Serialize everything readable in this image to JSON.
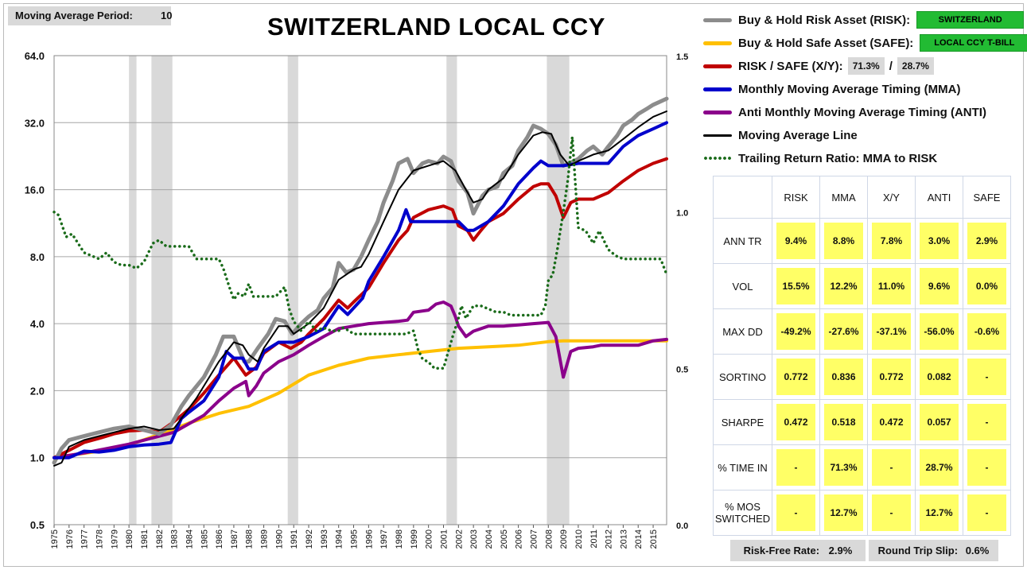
{
  "header": {
    "ma_period_label": "Moving Average Period:",
    "ma_period_value": "10",
    "title": "SWITZERLAND LOCAL CCY"
  },
  "legend": {
    "risk_label": "Buy & Hold Risk Asset (RISK):",
    "risk_value": "SWITZERLAND",
    "safe_label": "Buy & Hold Safe Asset (SAFE):",
    "safe_value": "LOCAL CCY T-BILL",
    "xy_label": "RISK / SAFE (X/Y):",
    "xy_risk": "71.3%",
    "xy_sep": "/",
    "xy_safe": "28.7%",
    "mma_label": "Monthly Moving Average Timing (MMA)",
    "anti_label": "Anti Monthly Moving Average Timing (ANTI)",
    "ma_line_label": "Moving Average Line",
    "ratio_label": "Trailing Return Ratio: MMA to RISK"
  },
  "colors": {
    "risk": "#8c8c8c",
    "safe": "#ffc000",
    "xy": "#c00000",
    "mma": "#0000cc",
    "anti": "#8b008b",
    "ma_line": "#000000",
    "ratio": "#1a6b1a",
    "recession": "#d9d9d9",
    "highlight": "#ffff66",
    "tag_green": "#22bb33"
  },
  "stats": {
    "columns": [
      "RISK",
      "MMA",
      "X/Y",
      "ANTI",
      "SAFE"
    ],
    "rows": [
      {
        "label": "ANN TR",
        "values": [
          "9.4%",
          "8.8%",
          "7.8%",
          "3.0%",
          "2.9%"
        ]
      },
      {
        "label": "VOL",
        "values": [
          "15.5%",
          "12.2%",
          "11.0%",
          "9.6%",
          "0.0%"
        ]
      },
      {
        "label": "MAX DD",
        "values": [
          "-49.2%",
          "-27.6%",
          "-37.1%",
          "-56.0%",
          "-0.6%"
        ]
      },
      {
        "label": "SORTINO",
        "values": [
          "0.772",
          "0.836",
          "0.772",
          "0.082",
          "-"
        ]
      },
      {
        "label": "SHARPE",
        "values": [
          "0.472",
          "0.518",
          "0.472",
          "0.057",
          "-"
        ]
      },
      {
        "label": "% TIME IN",
        "values": [
          "-",
          "71.3%",
          "-",
          "28.7%",
          "-"
        ]
      },
      {
        "label": "% MOS SWITCHED",
        "values": [
          "-",
          "12.7%",
          "-",
          "12.7%",
          "-"
        ]
      }
    ]
  },
  "footer": {
    "risk_free_label": "Risk-Free Rate:",
    "risk_free_value": "2.9%",
    "slip_label": "Round Trip Slip:",
    "slip_value": "0.6%"
  },
  "chart_data": {
    "type": "line",
    "title": "SWITZERLAND LOCAL CCY",
    "y_scale": "log2",
    "ylim": [
      0.5,
      64
    ],
    "y_ticks": [
      "0.5",
      "1.0",
      "2.0",
      "4.0",
      "8.0",
      "16.0",
      "32.0",
      "64.0"
    ],
    "y2lim": [
      0.0,
      1.5
    ],
    "y2_ticks": [
      "0.0",
      "0.5",
      "1.0",
      "1.5"
    ],
    "xlim": [
      1975,
      2015.9
    ],
    "x_ticks": [
      "1975",
      "1976",
      "1977",
      "1978",
      "1979",
      "1980",
      "1981",
      "1982",
      "1983",
      "1984",
      "1985",
      "1986",
      "1987",
      "1988",
      "1989",
      "1990",
      "1991",
      "1992",
      "1993",
      "1994",
      "1995",
      "1996",
      "1997",
      "1998",
      "1999",
      "2000",
      "2001",
      "2002",
      "2003",
      "2004",
      "2005",
      "2006",
      "2007",
      "2008",
      "2009",
      "2010",
      "2011",
      "2012",
      "2013",
      "2014",
      "2015"
    ],
    "grid": true,
    "recessions": [
      [
        1980.0,
        1980.5
      ],
      [
        1981.5,
        1982.9
      ],
      [
        1990.6,
        1991.3
      ],
      [
        2001.2,
        2001.9
      ],
      [
        2007.9,
        2009.4
      ]
    ],
    "series": [
      {
        "name": "Buy & Hold Risk Asset (RISK)",
        "key": "risk",
        "axis": "left",
        "width": 5,
        "x": [
          1975.0,
          1975.5,
          1976,
          1977,
          1978,
          1979,
          1980,
          1981,
          1982,
          1982.8,
          1983.5,
          1984,
          1985,
          1985.8,
          1986.3,
          1987.0,
          1987.7,
          1988.0,
          1988.6,
          1989.3,
          1989.8,
          1990.4,
          1990.9,
          1991.5,
          1992,
          1992.6,
          1993,
          1993.6,
          1994.0,
          1994.5,
          1995,
          1995.5,
          1996,
          1996.6,
          1997,
          1997.6,
          1998,
          1998.6,
          1999,
          1999.6,
          2000,
          2000.6,
          2001,
          2001.5,
          2002,
          2002.6,
          2003.0,
          2003.6,
          2004,
          2004.6,
          2005,
          2005.6,
          2006,
          2006.6,
          2007.0,
          2007.5,
          2008.0,
          2008.5,
          2009.0,
          2009.4,
          2010,
          2010.6,
          2011,
          2011.6,
          2012,
          2012.6,
          2013,
          2013.6,
          2014,
          2014.6,
          2015,
          2015.9
        ],
        "y": [
          0.95,
          1.1,
          1.2,
          1.25,
          1.3,
          1.35,
          1.38,
          1.33,
          1.28,
          1.4,
          1.7,
          1.9,
          2.3,
          2.9,
          3.5,
          3.5,
          2.7,
          2.7,
          3.1,
          3.6,
          4.2,
          4.1,
          3.6,
          4.0,
          4.3,
          4.6,
          5.2,
          5.8,
          7.5,
          6.8,
          7.0,
          8.0,
          9.5,
          11.5,
          14.0,
          17.5,
          21.0,
          22.0,
          19.0,
          21.0,
          21.5,
          21.0,
          22.5,
          21.5,
          17.5,
          15.5,
          12.5,
          15.0,
          16.0,
          16.5,
          19.0,
          20.5,
          24.0,
          27.5,
          31.0,
          30.0,
          28.5,
          25.5,
          20.5,
          21.0,
          22.0,
          24.0,
          25.0,
          23.0,
          25.0,
          28.0,
          31.0,
          33.0,
          35.0,
          37.0,
          38.5,
          41.0
        ]
      },
      {
        "name": "Buy & Hold Safe Asset (SAFE)",
        "key": "safe",
        "axis": "left",
        "width": 4,
        "x": [
          1975,
          1978,
          1980,
          1982,
          1984,
          1986,
          1988,
          1990,
          1992,
          1994,
          1996,
          1998,
          2000,
          2002,
          2004,
          2006,
          2008,
          2009,
          2012,
          2015.9
        ],
        "y": [
          1.0,
          1.07,
          1.14,
          1.27,
          1.43,
          1.58,
          1.7,
          1.95,
          2.35,
          2.6,
          2.8,
          2.9,
          3.0,
          3.1,
          3.15,
          3.2,
          3.32,
          3.35,
          3.35,
          3.35
        ]
      },
      {
        "name": "RISK / SAFE (X/Y)",
        "key": "xy",
        "axis": "left",
        "width": 4,
        "x": [
          1975,
          1976,
          1977,
          1978,
          1979,
          1980,
          1981,
          1982,
          1983,
          1984,
          1985,
          1986,
          1987,
          1987.8,
          1988.5,
          1989,
          1990,
          1990.8,
          1991.5,
          1992,
          1993,
          1994,
          1994.6,
          1995,
          1996,
          1997,
          1998,
          1998.6,
          1999,
          2000,
          2001,
          2001.6,
          2002,
          2002.6,
          2003.0,
          2003.5,
          2004,
          2005,
          2006,
          2007,
          2007.5,
          2008.0,
          2008.5,
          2009.0,
          2009.5,
          2010,
          2011,
          2012,
          2013,
          2014,
          2015,
          2015.9
        ],
        "y": [
          1.0,
          1.08,
          1.17,
          1.22,
          1.28,
          1.32,
          1.33,
          1.3,
          1.45,
          1.65,
          1.95,
          2.35,
          2.8,
          2.35,
          2.55,
          2.95,
          3.3,
          3.1,
          3.3,
          3.6,
          4.2,
          5.1,
          4.7,
          5.0,
          5.8,
          7.5,
          9.5,
          10.5,
          12.0,
          13.0,
          13.5,
          13.0,
          11.0,
          10.5,
          9.5,
          10.5,
          11.5,
          12.5,
          14.5,
          16.5,
          17.0,
          17.0,
          15.0,
          12.0,
          14.0,
          14.5,
          14.5,
          15.5,
          17.5,
          19.5,
          21.0,
          22.0
        ]
      },
      {
        "name": "Monthly Moving Average Timing (MMA)",
        "key": "mma",
        "axis": "left",
        "width": 4,
        "x": [
          1975,
          1976,
          1977,
          1978,
          1979,
          1980,
          1981,
          1982,
          1982.8,
          1983.5,
          1984,
          1985,
          1986,
          1986.5,
          1987,
          1987.6,
          1988.0,
          1988.5,
          1989,
          1990,
          1990.6,
          1991,
          1992,
          1993,
          1994,
          1994.6,
          1995,
          1995.6,
          1996,
          1997,
          1998,
          1998.5,
          1998.8,
          1999,
          2000,
          2001,
          2001.5,
          2002,
          2002.6,
          2003,
          2004,
          2005,
          2006,
          2007,
          2007.5,
          2008.0,
          2009,
          2010,
          2011,
          2012,
          2013,
          2014,
          2015,
          2015.9
        ],
        "y": [
          1.0,
          1.0,
          1.07,
          1.06,
          1.08,
          1.12,
          1.14,
          1.15,
          1.17,
          1.5,
          1.6,
          1.8,
          2.3,
          3.0,
          2.8,
          2.8,
          2.5,
          2.5,
          3.0,
          3.3,
          3.3,
          3.3,
          3.5,
          3.8,
          4.8,
          4.4,
          4.7,
          5.2,
          6.2,
          8.0,
          10.5,
          13.0,
          11.5,
          11.5,
          11.5,
          11.5,
          11.5,
          11.5,
          10.5,
          10.5,
          11.5,
          13.5,
          17.0,
          20.0,
          21.5,
          20.5,
          20.5,
          21.0,
          21.0,
          21.0,
          25.0,
          28.0,
          30.0,
          32.0
        ]
      },
      {
        "name": "Anti Monthly Moving Average Timing (ANTI)",
        "key": "anti",
        "axis": "left",
        "width": 4,
        "x": [
          1975,
          1977,
          1980,
          1983,
          1985,
          1986,
          1987,
          1987.8,
          1988.0,
          1988.5,
          1989,
          1990,
          1991,
          1992,
          1993,
          1994,
          1995,
          1996,
          1997,
          1998,
          1998.6,
          1999,
          2000,
          2000.5,
          2001,
          2001.5,
          2001.8,
          2002,
          2002.5,
          2003,
          2004,
          2005,
          2006,
          2007,
          2008,
          2008.5,
          2009.0,
          2009.5,
          2010,
          2011,
          2011.5,
          2012,
          2013,
          2014,
          2015,
          2015.9
        ],
        "y": [
          1.0,
          1.05,
          1.15,
          1.3,
          1.55,
          1.8,
          2.05,
          2.2,
          1.9,
          2.1,
          2.4,
          2.7,
          2.9,
          3.2,
          3.5,
          3.8,
          3.9,
          4.0,
          4.05,
          4.1,
          4.15,
          4.5,
          4.6,
          4.9,
          5.0,
          4.8,
          4.3,
          3.9,
          3.5,
          3.7,
          3.9,
          3.9,
          3.95,
          4.0,
          4.05,
          3.5,
          2.3,
          3.0,
          3.1,
          3.15,
          3.2,
          3.2,
          3.2,
          3.2,
          3.35,
          3.4
        ]
      },
      {
        "name": "Moving Average Line",
        "key": "ma_line",
        "axis": "left",
        "width": 2,
        "x": [
          1975.0,
          1975.5,
          1976,
          1977,
          1978,
          1979,
          1980,
          1981,
          1982,
          1983,
          1983.8,
          1984.5,
          1985,
          1986,
          1987,
          1987.6,
          1988,
          1988.6,
          1989,
          1990,
          1990.6,
          1991,
          1992,
          1993,
          1994,
          1995,
          1995.5,
          1996,
          1997,
          1998,
          1999,
          2000,
          2001,
          2001.8,
          2002.5,
          2003,
          2003.6,
          2004,
          2005,
          2006,
          2007,
          2007.6,
          2008.2,
          2008.8,
          2009.4,
          2010,
          2011,
          2012,
          2013,
          2014,
          2015,
          2015.9
        ],
        "y": [
          0.92,
          0.95,
          1.12,
          1.2,
          1.25,
          1.3,
          1.35,
          1.38,
          1.33,
          1.35,
          1.6,
          1.85,
          2.1,
          2.7,
          3.3,
          3.2,
          2.9,
          2.7,
          3.1,
          3.9,
          3.9,
          3.6,
          4.0,
          4.7,
          6.3,
          7.0,
          7.2,
          8.2,
          11.5,
          16.0,
          19.5,
          20.5,
          21.5,
          19.5,
          16.0,
          14.0,
          14.5,
          16.0,
          18.0,
          23.0,
          28.0,
          29.0,
          28.5,
          23.0,
          20.5,
          21.5,
          23.0,
          24.0,
          27.0,
          30.5,
          34.0,
          36.0
        ]
      },
      {
        "name": "Trailing Return Ratio: MMA to RISK",
        "key": "ratio",
        "axis": "right",
        "dotted": true,
        "x": [
          1975.0,
          1975.3,
          1975.8,
          1976.2,
          1976.6,
          1977,
          1977.5,
          1978,
          1978.5,
          1979,
          1979.5,
          1980,
          1980.5,
          1981,
          1981.3,
          1981.6,
          1982,
          1982.5,
          1983,
          1983.5,
          1984,
          1984.5,
          1985,
          1985.5,
          1986,
          1986.3,
          1986.7,
          1987,
          1987.3,
          1987.7,
          1988,
          1988.3,
          1988.6,
          1989,
          1989.5,
          1989.8,
          1990,
          1990.4,
          1990.7,
          1991,
          1991.5,
          1992,
          1992.5,
          1993,
          1993.5,
          1994,
          1994.3,
          1994.7,
          1995,
          1995.5,
          1996,
          1996.5,
          1997,
          1997.5,
          1998,
          1998.5,
          1999,
          1999.3,
          1999.6,
          2000,
          2000.4,
          2000.8,
          2001,
          2001.3,
          2001.6,
          2002,
          2002.2,
          2002.5,
          2003,
          2003.5,
          2004,
          2004.5,
          2005,
          2005.5,
          2006,
          2006.5,
          2007,
          2007.5,
          2007.8,
          2008.0,
          2008.3,
          2008.6,
          2009.0,
          2009.3,
          2009.6,
          2010,
          2010.5,
          2011,
          2011.4,
          2011.8,
          2012,
          2012.5,
          2013,
          2013.5,
          2014,
          2014.5,
          2015,
          2015.5,
          2015.9
        ],
        "y": [
          1.0,
          0.99,
          0.92,
          0.93,
          0.9,
          0.87,
          0.86,
          0.85,
          0.87,
          0.84,
          0.83,
          0.83,
          0.82,
          0.84,
          0.87,
          0.9,
          0.91,
          0.89,
          0.89,
          0.89,
          0.89,
          0.85,
          0.85,
          0.85,
          0.85,
          0.82,
          0.76,
          0.72,
          0.74,
          0.73,
          0.77,
          0.73,
          0.73,
          0.73,
          0.73,
          0.73,
          0.74,
          0.76,
          0.69,
          0.65,
          0.62,
          0.65,
          0.62,
          0.63,
          0.62,
          0.62,
          0.63,
          0.62,
          0.61,
          0.61,
          0.61,
          0.61,
          0.61,
          0.61,
          0.61,
          0.61,
          0.62,
          0.56,
          0.53,
          0.52,
          0.5,
          0.5,
          0.5,
          0.55,
          0.6,
          0.66,
          0.7,
          0.66,
          0.7,
          0.7,
          0.69,
          0.68,
          0.68,
          0.67,
          0.67,
          0.67,
          0.67,
          0.67,
          0.7,
          0.78,
          0.8,
          0.88,
          1.0,
          1.1,
          1.24,
          0.95,
          0.94,
          0.9,
          0.94,
          0.9,
          0.88,
          0.86,
          0.85,
          0.85,
          0.85,
          0.85,
          0.85,
          0.85,
          0.8
        ]
      }
    ]
  }
}
